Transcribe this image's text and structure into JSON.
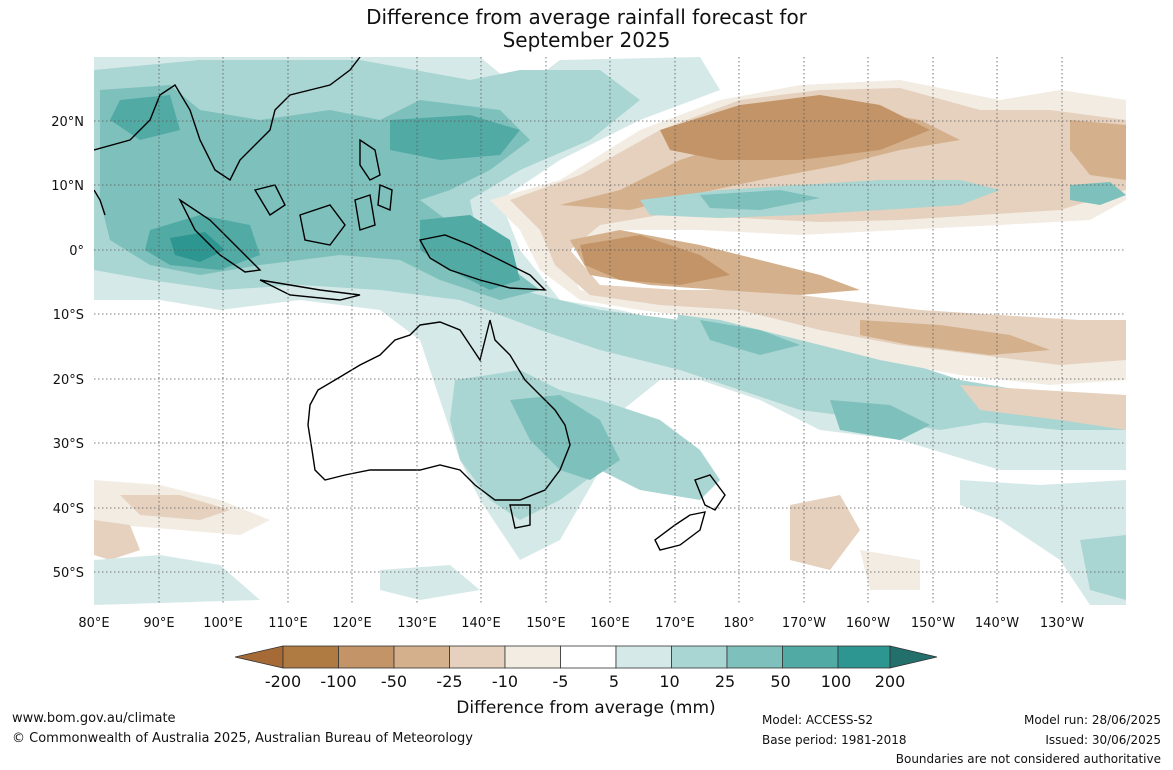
{
  "title_line1": "Difference from average rainfall forecast for",
  "title_line2": "September 2025",
  "lat_labels": [
    "20°N",
    "10°N",
    "0°",
    "10°S",
    "20°S",
    "30°S",
    "40°S",
    "50°S"
  ],
  "lon_labels": [
    "80°E",
    "90°E",
    "100°E",
    "110°E",
    "120°E",
    "130°E",
    "140°E",
    "150°E",
    "160°E",
    "170°E",
    "180°",
    "170°W",
    "160°W",
    "150°W",
    "140°W",
    "130°W"
  ],
  "legend": {
    "title": "Difference from average (mm)",
    "tick_labels": [
      "-200",
      "-100",
      "-50",
      "-25",
      "-10",
      "-5",
      "5",
      "10",
      "25",
      "50",
      "100",
      "200"
    ],
    "colors": [
      "#a66a36",
      "#b07a43",
      "#c29467",
      "#d4b08c",
      "#e5d1bd",
      "#f2ece3",
      "#ffffff",
      "#d5eae8",
      "#a9d5d2",
      "#7dc0bc",
      "#52aaa5",
      "#2e9691",
      "#236f6c"
    ]
  },
  "footer": {
    "website": "www.bom.gov.au/climate",
    "copyright": "© Commonwealth of Australia 2025, Australian Bureau of Meteorology",
    "model": "Model: ACCESS-S2",
    "base_period": "Base period: 1981-2018",
    "model_run": "Model run: 28/06/2025",
    "issued": "Issued: 30/06/2025",
    "disclaimer": "Boundaries are not considered authoritative"
  }
}
